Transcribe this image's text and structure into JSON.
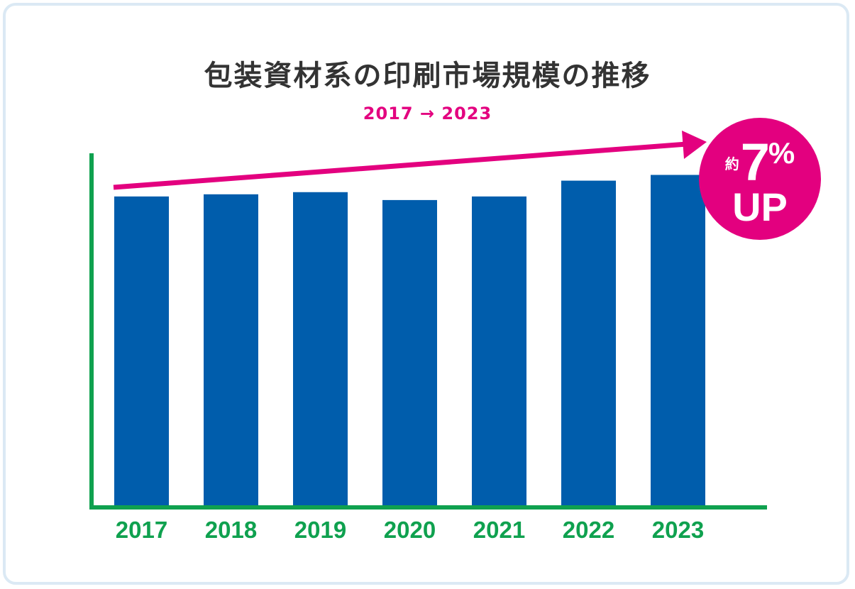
{
  "colors": {
    "bar": "#005dac",
    "axis": "#0fa14f",
    "accent": "#e3007f",
    "title": "#333333"
  },
  "chart_data": {
    "type": "bar",
    "title": "包装資材系の印刷市場規模の推移",
    "subtitle": "2017 → 2023",
    "categories": [
      "2017",
      "2018",
      "2019",
      "2020",
      "2021",
      "2022",
      "2023"
    ],
    "values": [
      86,
      86.6,
      87.2,
      85,
      86,
      90.4,
      92
    ],
    "ylim": [
      0,
      100
    ],
    "grid": false,
    "annotation": {
      "prefix": "約",
      "value": "7",
      "unit": "%",
      "suffix": "UP"
    }
  }
}
